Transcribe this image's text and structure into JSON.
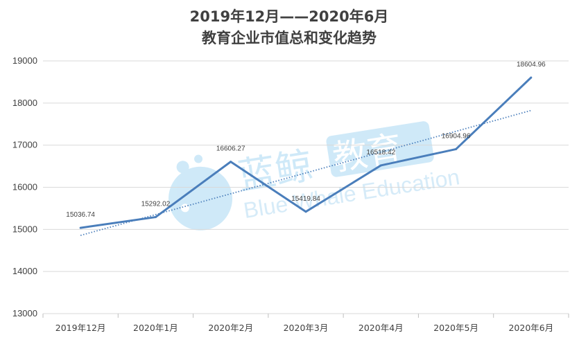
{
  "chart_data": {
    "type": "line",
    "title_line1": "2019年12月——2020年6月",
    "title_line2": "教育企业市值总和变化趋势",
    "categories": [
      "2019年12月",
      "2020年1月",
      "2020年2月",
      "2020年3月",
      "2020年4月",
      "2020年5月",
      "2020年6月"
    ],
    "series": [
      {
        "values": [
          15036.74,
          15292.02,
          16606.27,
          15419.84,
          16518.42,
          16904.96,
          18604.96
        ]
      }
    ],
    "data_labels": [
      "15036.74",
      "15292.02",
      "16606.27",
      "15419.84",
      "16518.42",
      "16904.96",
      "18604.96"
    ],
    "trendline": {
      "type": "linear",
      "style": "dotted"
    },
    "ylim": [
      13000,
      19000
    ],
    "y_ticks": [
      13000,
      14000,
      15000,
      16000,
      17000,
      18000,
      19000
    ],
    "y_tick_labels": [
      "13000",
      "14000",
      "15000",
      "16000",
      "17000",
      "18000",
      "19000"
    ],
    "grid": true,
    "colors": {
      "line": "#4a7ebb",
      "trend": "#4a7ebb",
      "grid": "#d9d9d9",
      "text": "#404040"
    }
  },
  "watermark": {
    "brand_cn_1": "蓝鲸",
    "brand_cn_2": "教育",
    "brand_en": "Blue Whale Education",
    "color": "#bde0f5"
  }
}
